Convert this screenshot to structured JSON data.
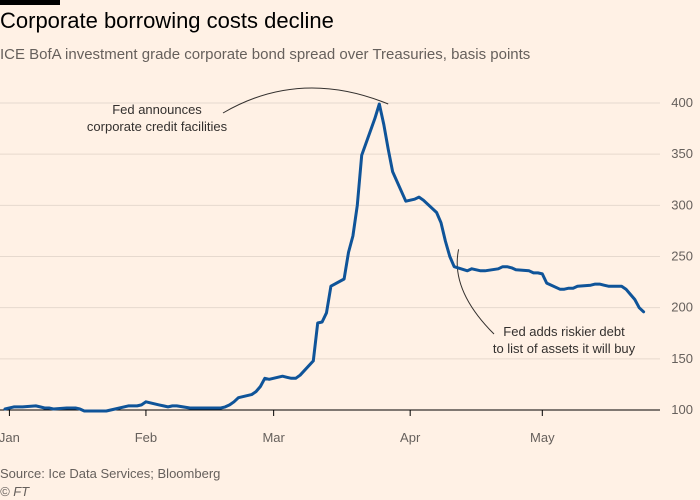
{
  "header": {
    "title": "Corporate borrowing costs decline",
    "subtitle": "ICE BofA investment grade corporate bond spread over Treasuries, basis points"
  },
  "footer": {
    "source": "Source: Ice Data Services; Bloomberg",
    "copyright": "© FT"
  },
  "colors": {
    "background": "#fff1e5",
    "line": "#0f5499",
    "grid": "#e6d9ce",
    "axis": "#000000",
    "text": "#66605c"
  },
  "chart_data": {
    "type": "line",
    "title": "Corporate borrowing costs decline",
    "subtitle": "ICE BofA investment grade corporate bond spread over Treasuries, basis points",
    "xlabel": "",
    "ylabel": "",
    "ylim": [
      100,
      400
    ],
    "yticks": [
      100,
      150,
      200,
      250,
      300,
      350,
      400
    ],
    "y_axis_position": "right",
    "grid": true,
    "x_axis": {
      "ticks": [
        {
          "label": "Jan",
          "day": 0
        },
        {
          "label": "Feb",
          "day": 31
        },
        {
          "label": "Mar",
          "day": 60
        },
        {
          "label": "Apr",
          "day": 91
        },
        {
          "label": "May",
          "day": 121
        }
      ],
      "range_days": [
        -1,
        145
      ]
    },
    "series": [
      {
        "name": "",
        "x_days": [
          -1,
          1,
          2,
          3,
          6,
          7,
          8,
          9,
          10,
          13,
          14,
          15,
          16,
          17,
          20,
          21,
          22,
          23,
          24,
          27,
          28,
          29,
          30,
          31,
          34,
          35,
          36,
          37,
          38,
          41,
          42,
          43,
          44,
          45,
          48,
          49,
          50,
          51,
          52,
          55,
          56,
          57,
          58,
          59,
          62,
          63,
          64,
          65,
          66,
          69,
          70,
          71,
          72,
          73,
          76,
          77,
          78,
          79,
          80,
          83,
          84,
          85,
          86,
          87,
          90,
          91,
          92,
          93,
          94,
          97,
          98,
          99,
          100,
          101,
          104,
          105,
          106,
          107,
          108,
          111,
          112,
          113,
          114,
          115,
          118,
          119,
          120,
          121,
          122,
          125,
          126,
          127,
          128,
          129,
          132,
          133,
          134,
          135,
          136,
          139,
          140,
          141,
          142,
          143,
          144
        ],
        "values": [
          101,
          103,
          103,
          103,
          104,
          103,
          102,
          102,
          101,
          102,
          102,
          102,
          101,
          99,
          99,
          99,
          99,
          100,
          101,
          104,
          104,
          104,
          105,
          108,
          105,
          104,
          103,
          104,
          104,
          102,
          102,
          102,
          102,
          102,
          102,
          103,
          105,
          108,
          112,
          115,
          118,
          123,
          131,
          130,
          133,
          132,
          131,
          131,
          134,
          148,
          185,
          186,
          195,
          221,
          228,
          254,
          270,
          300,
          349,
          385,
          399,
          379,
          355,
          333,
          304,
          305,
          306,
          308,
          305,
          293,
          283,
          265,
          250,
          240,
          236,
          238,
          237,
          236,
          236,
          238,
          240,
          240,
          239,
          237,
          236,
          234,
          234,
          233,
          224,
          218,
          218,
          219,
          219,
          221,
          222,
          223,
          223,
          222,
          221,
          221,
          218,
          213,
          208,
          200,
          196
        ]
      }
    ],
    "annotations": [
      {
        "lines": [
          "Fed announces",
          "corporate credit facilities"
        ],
        "day": 86,
        "value": 399
      },
      {
        "lines": [
          "Fed adds riskier debt",
          "to list of assets it will buy"
        ],
        "day": 102,
        "value": 257
      }
    ]
  }
}
